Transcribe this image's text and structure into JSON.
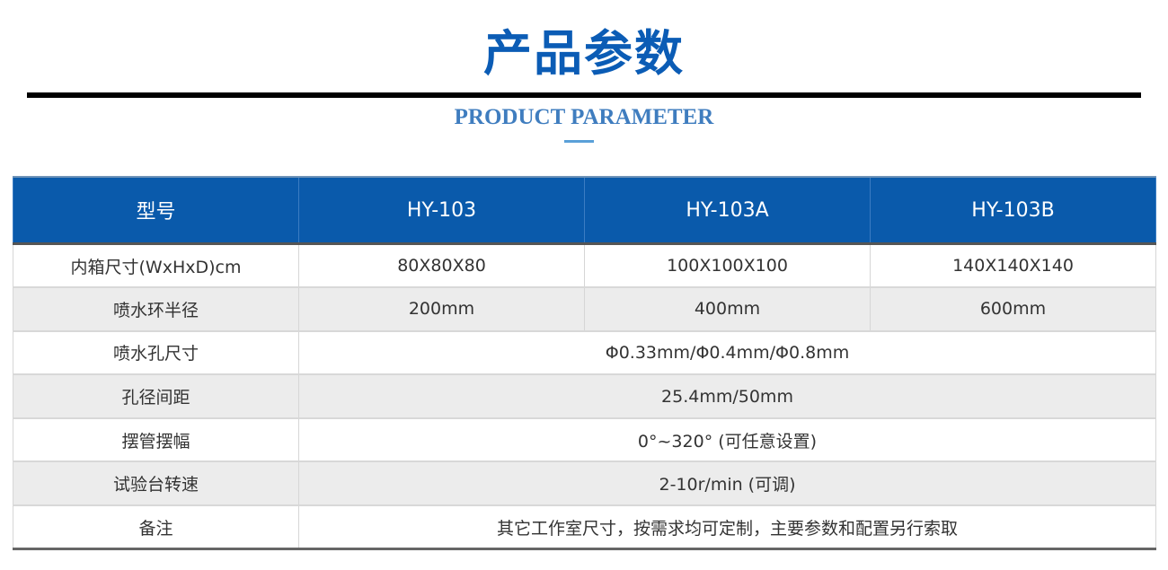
{
  "title": "产品参数",
  "subtitle": "PRODUCT PARAMETER",
  "table": {
    "headers": [
      "型号",
      "HY-103",
      "HY-103A",
      "HY-103B"
    ],
    "rows": [
      {
        "label": "内箱尺寸(WxHxD)cm",
        "values": [
          "80X80X80",
          "100X100X100",
          "140X140X140"
        ]
      },
      {
        "label": "喷水环半径",
        "values": [
          "200mm",
          "400mm",
          "600mm"
        ]
      },
      {
        "label": "喷水孔尺寸",
        "span": "Φ0.33mm/Φ0.4mm/Φ0.8mm"
      },
      {
        "label": "孔径间距",
        "span": "25.4mm/50mm"
      },
      {
        "label": "摆管摆幅",
        "span": "0°~320° (可任意设置)"
      },
      {
        "label": "试验台转速",
        "span": "2-10r/min (可调)"
      },
      {
        "label": "备注",
        "span": "其它工作室尺寸，按需求均可定制，主要参数和配置另行索取"
      }
    ]
  },
  "colors": {
    "brand": "#0b5cb5",
    "header_bg": "#0a5aab",
    "subtitle": "#3f7dbf"
  }
}
